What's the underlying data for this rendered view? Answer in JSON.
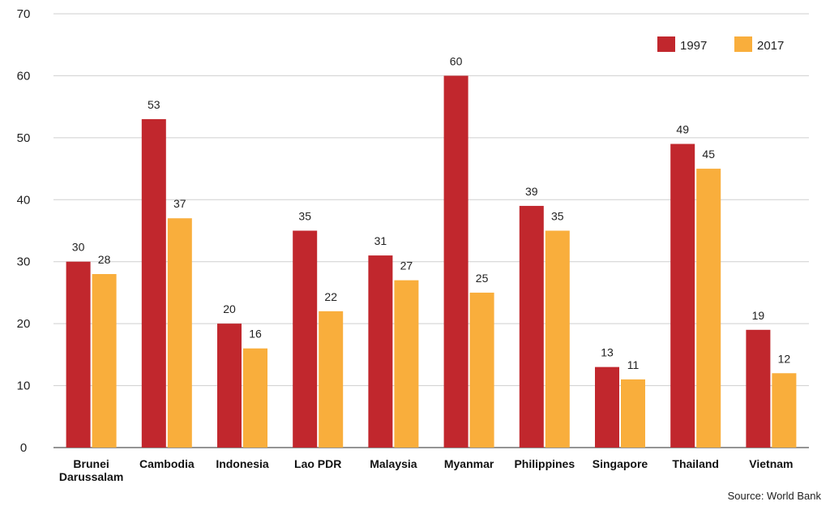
{
  "chart_data": {
    "type": "bar",
    "categories": [
      "Brunei Darussalam",
      "Cambodia",
      "Indonesia",
      "Lao PDR",
      "Malaysia",
      "Myanmar",
      "Philippines",
      "Singapore",
      "Thailand",
      "Vietnam"
    ],
    "category_lines": [
      [
        "Brunei",
        "Darussalam"
      ],
      [
        "Cambodia"
      ],
      [
        "Indonesia"
      ],
      [
        "Lao PDR"
      ],
      [
        "Malaysia"
      ],
      [
        "Myanmar"
      ],
      [
        "Philippines"
      ],
      [
        "Singapore"
      ],
      [
        "Thailand"
      ],
      [
        "Vietnam"
      ]
    ],
    "series": [
      {
        "name": "1997",
        "color": "#c1272d",
        "values": [
          30,
          53,
          20,
          35,
          31,
          60,
          39,
          13,
          49,
          19
        ]
      },
      {
        "name": "2017",
        "color": "#f9ae3c",
        "values": [
          28,
          37,
          16,
          22,
          27,
          25,
          35,
          11,
          45,
          12
        ]
      }
    ],
    "yticks": [
      0,
      10,
      20,
      30,
      40,
      50,
      60,
      70
    ],
    "ylim": [
      0,
      70
    ],
    "grid": true,
    "legend_position": "top-right",
    "data_labels": true,
    "source": "Source: World Bank"
  }
}
